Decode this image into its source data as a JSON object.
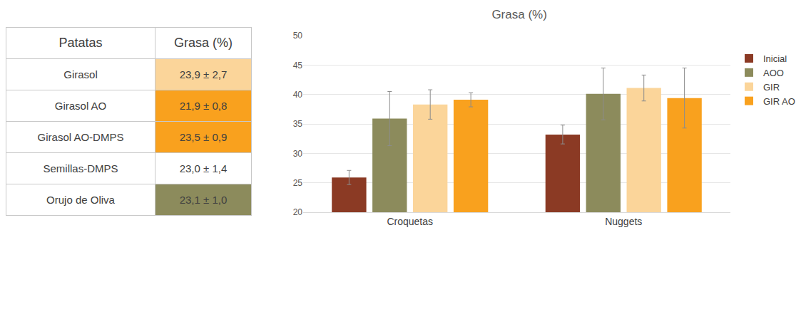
{
  "table": {
    "header": [
      "Patatas",
      "Grasa (%)"
    ],
    "rows": [
      [
        "Girasol",
        "23,9 ± 2,7"
      ],
      [
        "Girasol AO",
        "21,9 ± 0,8"
      ],
      [
        "Girasol AO-DMPS",
        "23,5 ± 0,9"
      ],
      [
        "Semillas-DMPS",
        "23,0 ± 1,4"
      ],
      [
        "Orujo de Oliva",
        "23,1 ± 1,0"
      ]
    ],
    "colors": [
      "#fbd59a",
      "#f9a11e",
      "#f9a11e",
      "#ffffff",
      "#8c8b5c"
    ]
  },
  "chart_data": {
    "type": "bar",
    "title": "Grasa (%)",
    "categories": [
      "Croquetas",
      "Nuggets"
    ],
    "series": [
      {
        "name": "Inicial",
        "color": "#8b3a24",
        "values": [
          25.9,
          33.2
        ],
        "error": [
          1.2,
          1.6
        ]
      },
      {
        "name": "AOO",
        "color": "#8c8b5c",
        "values": [
          35.9,
          40.1
        ],
        "error": [
          4.6,
          4.4
        ]
      },
      {
        "name": "GIR",
        "color": "#fbd59a",
        "values": [
          38.3,
          41.1
        ],
        "error": [
          2.5,
          2.2
        ]
      },
      {
        "name": "GIR AO",
        "color": "#f9a11e",
        "values": [
          39.1,
          39.4
        ],
        "error": [
          1.2,
          5.1
        ]
      }
    ],
    "ylim": [
      20,
      50
    ],
    "yticks": [
      20,
      25,
      30,
      35,
      40,
      45,
      50
    ],
    "grid": true,
    "legend": "right"
  }
}
